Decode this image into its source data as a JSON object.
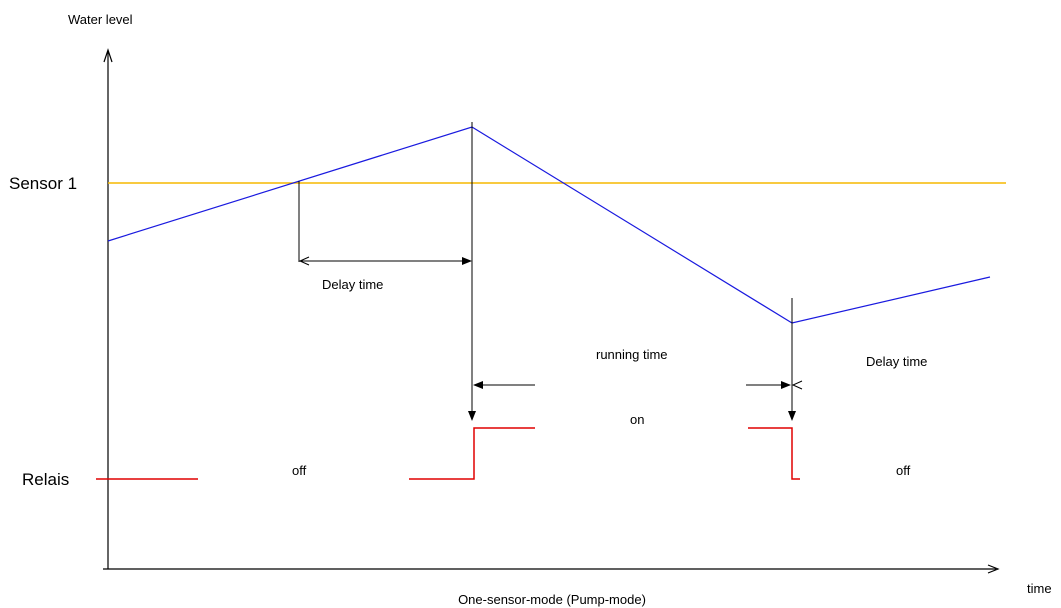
{
  "axes": {
    "y_label": "Water level",
    "x_label": "time"
  },
  "caption": "One-sensor-mode (Pump-mode)",
  "sensor": {
    "label": "Sensor 1",
    "color": "#f5b800"
  },
  "relay": {
    "label": "Relais",
    "color": "#e00000",
    "state_off_left": "off",
    "state_on": "on",
    "state_off_right": "off"
  },
  "water_level": {
    "color": "#1a1adf"
  },
  "annotations": {
    "delay_time_1": "Delay time",
    "running_time": "running time",
    "delay_time_2": "Delay time"
  }
}
